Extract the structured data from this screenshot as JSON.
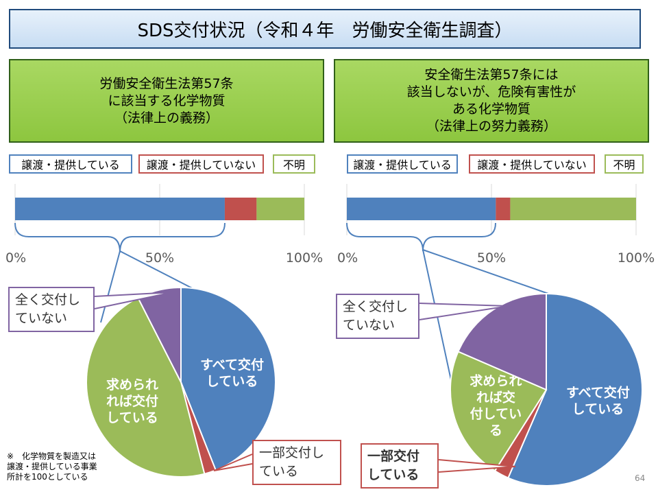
{
  "slide": {
    "title": "SDS交付状況（令和４年　労働安全衛生調査）",
    "page_number": "64",
    "footnote": [
      "※　化学物質を製造又は",
      "譲渡・提供している事業",
      "所計を100としている"
    ]
  },
  "legend": {
    "provided": "譲渡・提供している",
    "not_provided": "譲渡・提供していない",
    "unknown": "不明"
  },
  "colors": {
    "blue": "#4f81bd",
    "red": "#c0504d",
    "green": "#9bbb59",
    "purple": "#8064a2"
  },
  "panels": [
    {
      "category_lines": [
        "労働安全衛生法第57条",
        "に該当する化学物質",
        "（法律上の義務）"
      ],
      "callouts": {
        "none": [
          "全く交付し",
          "ていない"
        ],
        "partial": [
          "一部交付し",
          "ている"
        ]
      }
    },
    {
      "category_lines": [
        "安全衛生法第57条には",
        "該当しないが、危険有害性が",
        "ある化学物質",
        "（法律上の努力義務）"
      ],
      "callouts": {
        "none": [
          "全く交付し",
          "ていない"
        ],
        "partial": [
          "一部交付",
          "している"
        ]
      }
    }
  ],
  "chart_data": [
    {
      "type": "bar",
      "orientation": "horizontal-stacked",
      "series": [
        {
          "name": "譲渡・提供している",
          "values": [
            72.5
          ]
        },
        {
          "name": "譲渡・提供していない",
          "values": [
            11
          ]
        },
        {
          "name": "不明",
          "values": [
            16.5
          ]
        }
      ],
      "tick_labels": [
        "0%",
        "50%",
        "100%"
      ],
      "xlim": [
        0,
        100
      ]
    },
    {
      "type": "pie",
      "labels": [
        "すべて交付している",
        "一部交付している",
        "求められれば交付している",
        "全く交付していない"
      ],
      "values": [
        44,
        2,
        46.5,
        7.5
      ],
      "slice_text": [
        [
          "すべて交付",
          "している"
        ],
        [],
        [
          "求められ",
          "れば交付",
          "している"
        ],
        []
      ]
    },
    {
      "type": "bar",
      "orientation": "horizontal-stacked",
      "series": [
        {
          "name": "譲渡・提供している",
          "values": [
            51.5
          ]
        },
        {
          "name": "譲渡・提供していない",
          "values": [
            5
          ]
        },
        {
          "name": "不明",
          "values": [
            43.5
          ]
        }
      ],
      "tick_labels": [
        "0%",
        "50%",
        "100%"
      ],
      "xlim": [
        0,
        100
      ]
    },
    {
      "type": "pie",
      "labels": [
        "すべて交付している",
        "一部交付している",
        "求められれば交付している",
        "全く交付していない"
      ],
      "values": [
        56.5,
        2.5,
        22.5,
        18.5
      ],
      "slice_text": [
        [
          "すべて交付",
          "している"
        ],
        [],
        [
          "求められ",
          "れば交",
          "付してい",
          "る"
        ],
        []
      ]
    }
  ]
}
